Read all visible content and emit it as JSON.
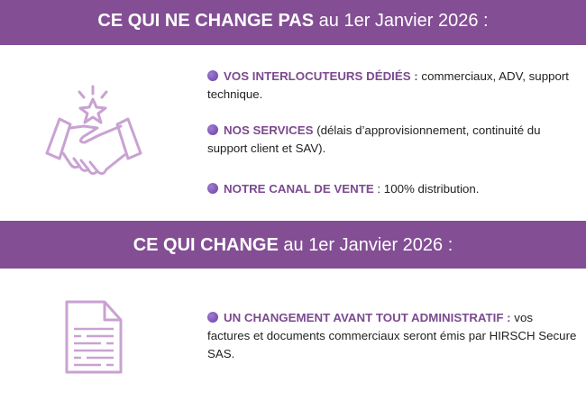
{
  "section1": {
    "title_bold": "CE QUI NE CHANGE PAS",
    "title_rest": " au 1er Janvier 2026 :",
    "items": [
      {
        "key": "VOS INTERLOCUTEURS DÉDIÉS :",
        "text": " commerciaux, ADV, support technique."
      },
      {
        "key": "NOS SERVICES",
        "text": " (délais d’approvisionnement, continuité du support client et SAV)."
      },
      {
        "key": "NOTRE CANAL DE VENTE",
        "text": " : 100% distribution."
      }
    ]
  },
  "section2": {
    "title_bold": "CE QUI CHANGE",
    "title_rest": " au 1er Janvier 2026 :",
    "items": [
      {
        "key": "UN CHANGEMENT AVANT TOUT ADMINISTRATIF :",
        "text": " vos factures et documents commerciaux seront émis par HIRSCH Secure SAS."
      }
    ]
  },
  "colors": {
    "band": "#834e94",
    "accent": "#7b4a8f",
    "icon": "#c9a2d2"
  }
}
